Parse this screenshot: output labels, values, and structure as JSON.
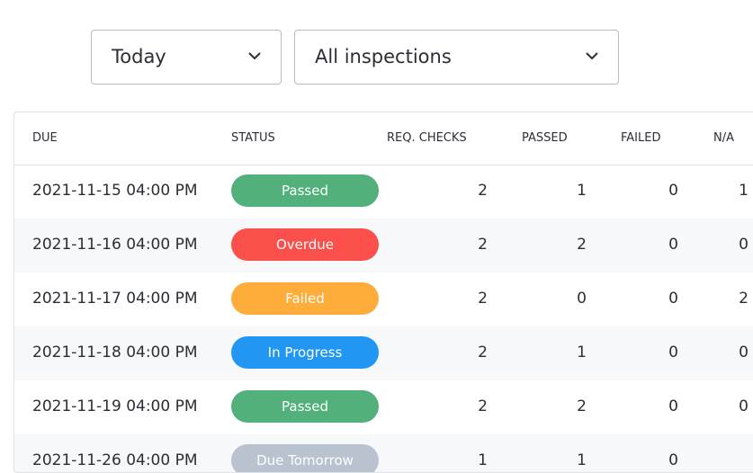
{
  "filters": {
    "period": "Today",
    "type": "All inspections"
  },
  "table": {
    "headers": [
      "DUE",
      "STATUS",
      "REQ. CHECKS",
      "PASSED",
      "FAILED",
      "N/A"
    ],
    "rows": [
      {
        "due": "2021-11-15 04:00 PM",
        "status": "Passed",
        "status_color": "#52b07a",
        "req_checks": 2,
        "passed": 1,
        "failed": 0,
        "na": 1
      },
      {
        "due": "2021-11-16 04:00 PM",
        "status": "Overdue",
        "status_color": "#fb4f4b",
        "req_checks": 2,
        "passed": 2,
        "failed": 0,
        "na": 0
      },
      {
        "due": "2021-11-17 04:00 PM",
        "status": "Failed",
        "status_color": "#ffad3a",
        "req_checks": 2,
        "passed": 0,
        "failed": 0,
        "na": 2
      },
      {
        "due": "2021-11-18 04:00 PM",
        "status": "In Progress",
        "status_color": "#2196f3",
        "req_checks": 2,
        "passed": 1,
        "failed": 0,
        "na": 0
      },
      {
        "due": "2021-11-19 04:00 PM",
        "status": "Passed",
        "status_color": "#52b07a",
        "req_checks": 2,
        "passed": 2,
        "failed": 0,
        "na": 0
      },
      {
        "due": "2021-11-26 04:00 PM",
        "status": "Due Tomorrow",
        "status_color": "#b9c2cf",
        "req_checks": 1,
        "passed": 1,
        "failed": 0
      }
    ]
  }
}
